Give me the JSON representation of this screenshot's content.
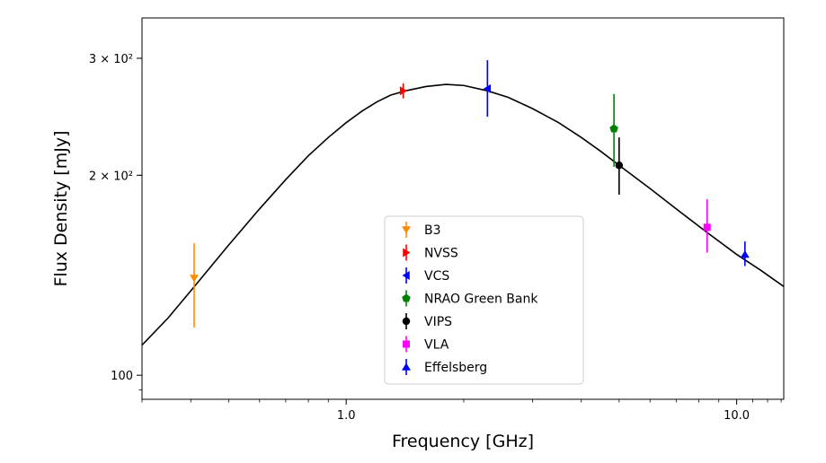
{
  "chart_data": {
    "type": "scatter",
    "xlabel": "Frequency [GHz]",
    "ylabel": "Flux Density [mJy]",
    "xscale": "log",
    "yscale": "log",
    "xlim": [
      0.3,
      13.2
    ],
    "ylim": [
      92,
      345
    ],
    "grid": false,
    "legend_position": "lower-center",
    "x_ticks": [
      {
        "value": 1.0,
        "label": "1.0"
      },
      {
        "value": 10.0,
        "label": "10.0"
      }
    ],
    "y_ticks": [
      {
        "value": 100,
        "label": "100"
      },
      {
        "value": 200,
        "label": "2 × 10²"
      },
      {
        "value": 300,
        "label": "3 × 10²"
      }
    ],
    "fit_curve": {
      "color": "#000000",
      "points": [
        [
          0.3,
          111
        ],
        [
          0.35,
          122
        ],
        [
          0.4,
          134
        ],
        [
          0.5,
          157
        ],
        [
          0.6,
          178
        ],
        [
          0.7,
          197
        ],
        [
          0.8,
          214
        ],
        [
          0.9,
          228
        ],
        [
          1.0,
          240
        ],
        [
          1.1,
          250
        ],
        [
          1.2,
          258
        ],
        [
          1.3,
          264
        ],
        [
          1.42,
          268
        ],
        [
          1.6,
          272
        ],
        [
          1.8,
          274
        ],
        [
          2.0,
          273
        ],
        [
          2.3,
          268
        ],
        [
          2.6,
          262
        ],
        [
          3.0,
          252
        ],
        [
          3.5,
          240
        ],
        [
          4.0,
          228
        ],
        [
          4.5,
          217
        ],
        [
          5.0,
          207
        ],
        [
          6.0,
          191
        ],
        [
          7.0,
          178
        ],
        [
          8.4,
          164
        ],
        [
          10.0,
          152
        ],
        [
          11.5,
          144
        ],
        [
          13.2,
          136
        ]
      ]
    },
    "series": [
      {
        "name": "B3",
        "color": "#ff8c00",
        "marker": "triangle-down",
        "x": 0.408,
        "y": 140,
        "yerr_low": 118,
        "yerr_high": 158
      },
      {
        "name": "NVSS",
        "color": "#ff0000",
        "marker": "triangle-right",
        "x": 1.4,
        "y": 268,
        "yerr_low": 261,
        "yerr_high": 275
      },
      {
        "name": "VCS",
        "color": "#0000ff",
        "marker": "triangle-left",
        "x": 2.3,
        "y": 270,
        "yerr_low": 245,
        "yerr_high": 298
      },
      {
        "name": "NRAO Green Bank",
        "color": "#008000",
        "marker": "pentagon",
        "x": 4.85,
        "y": 235,
        "yerr_low": 206,
        "yerr_high": 265
      },
      {
        "name": "VIPS",
        "color": "#000000",
        "marker": "circle",
        "x": 5.0,
        "y": 207,
        "yerr_low": 187,
        "yerr_high": 228
      },
      {
        "name": "VLA",
        "color": "#ff00ff",
        "marker": "square",
        "x": 8.4,
        "y": 167,
        "yerr_low": 153,
        "yerr_high": 184
      },
      {
        "name": "Effelsberg",
        "color": "#0000ff",
        "marker": "triangle-up",
        "x": 10.5,
        "y": 152,
        "yerr_low": 146,
        "yerr_high": 159
      }
    ]
  }
}
